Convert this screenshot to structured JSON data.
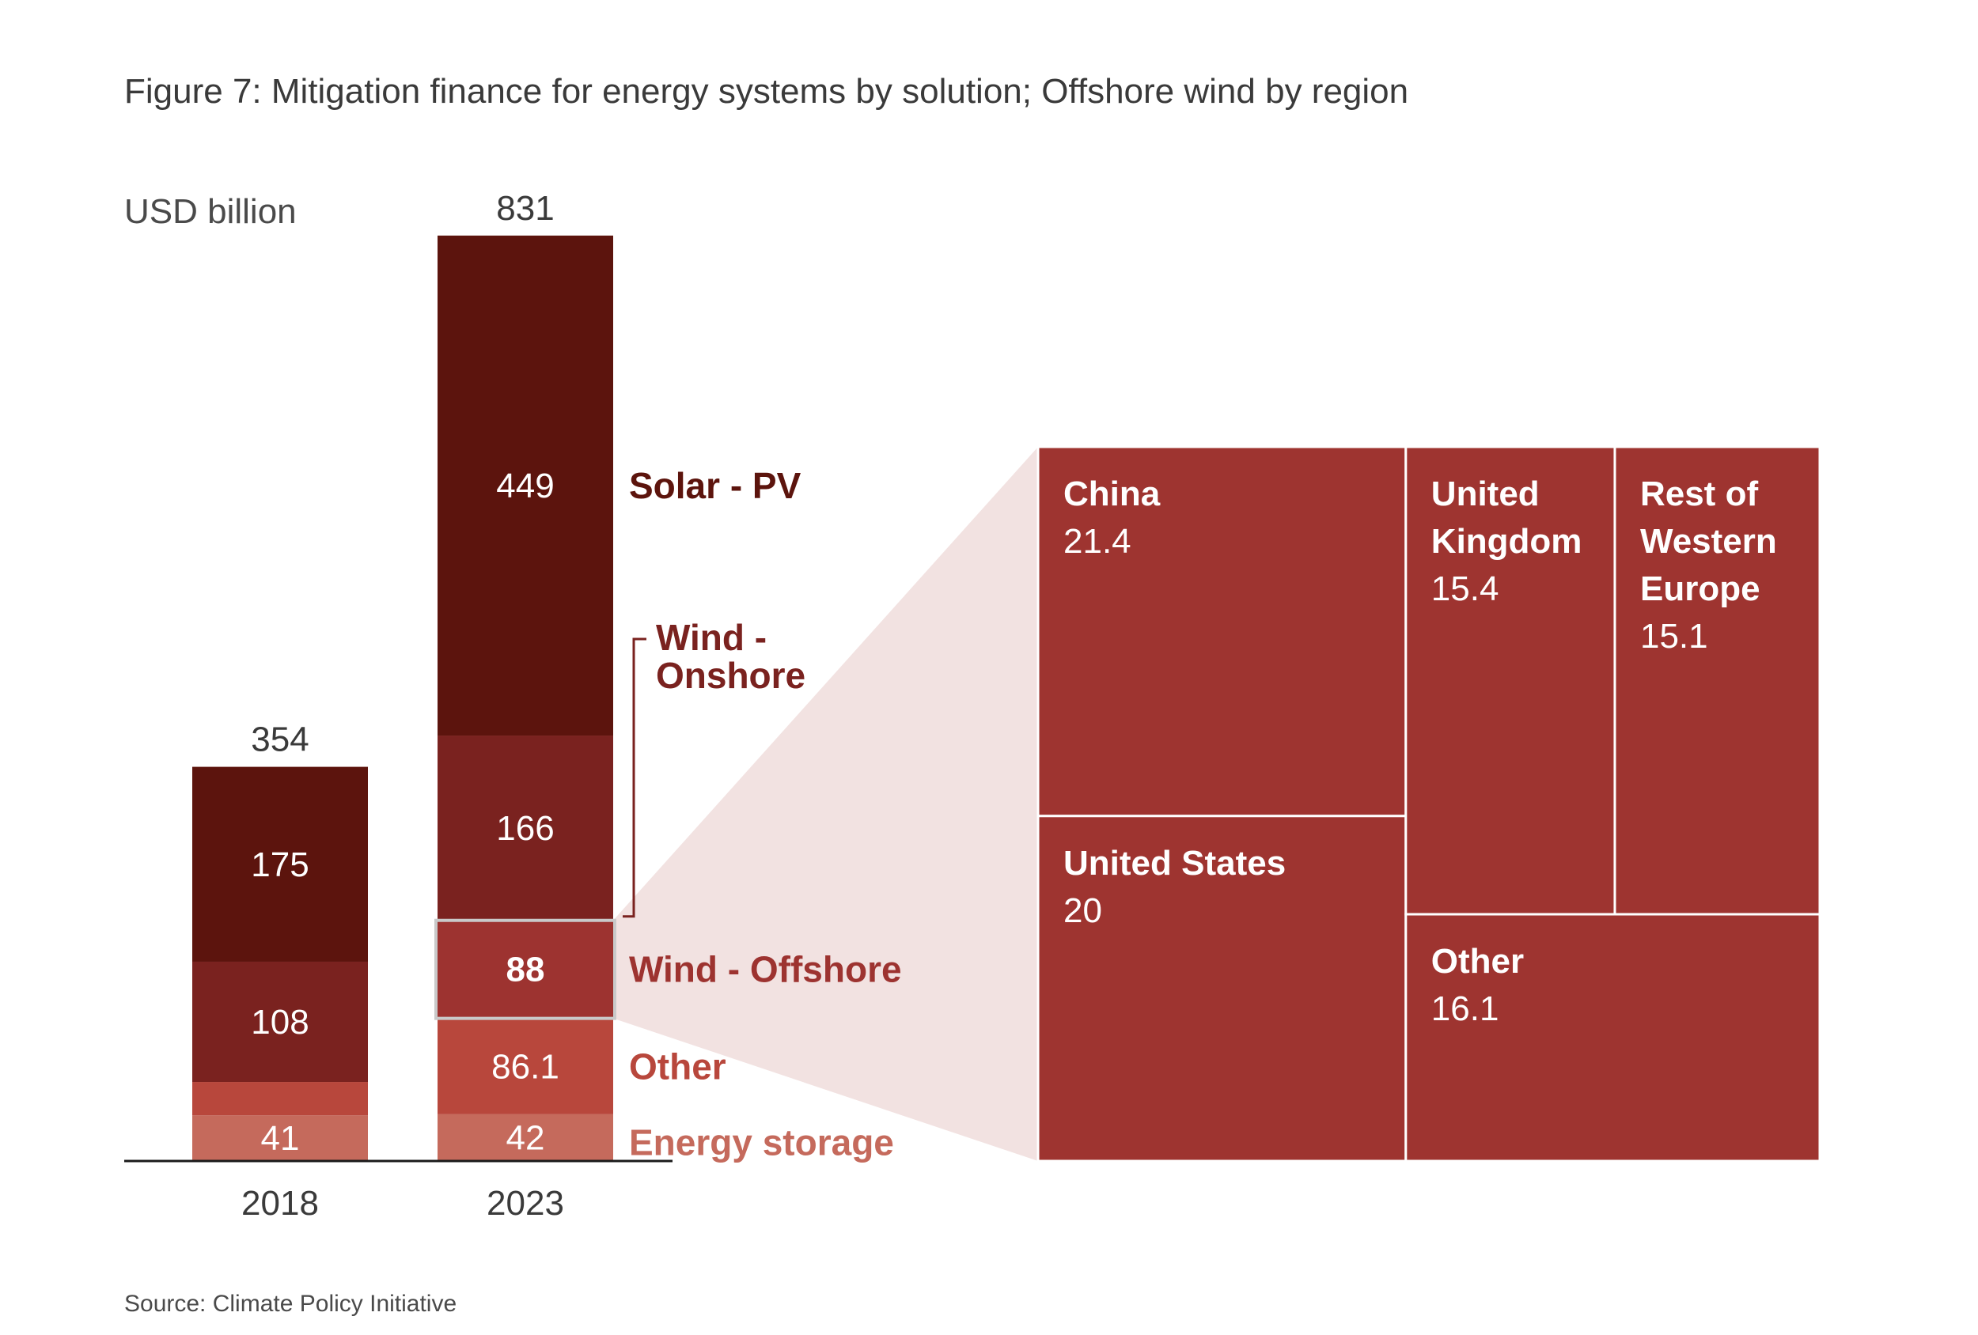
{
  "title": "Figure 7: Mitigation finance for energy systems by solution; Offshore wind by region",
  "source": "Source: Climate Policy Initiative",
  "chart_data": [
    {
      "type": "bar",
      "stacked": true,
      "ylabel": "USD billion",
      "categories": [
        "2018",
        "2023"
      ],
      "totals": [
        "354",
        "831"
      ],
      "series": [
        {
          "name": "Energy storage",
          "values": [
            41,
            42
          ],
          "labels": [
            "41",
            "42"
          ],
          "color": "#c56a5c"
        },
        {
          "name": "Other",
          "values": [
            30,
            86.1
          ],
          "labels": [
            "",
            "86.1"
          ],
          "color": "#b8473c"
        },
        {
          "name": "Wind - Offshore",
          "values": [
            0,
            88
          ],
          "labels": [
            "",
            "88"
          ],
          "color": "#9d3330"
        },
        {
          "name": "Wind - Onshore",
          "values": [
            108,
            166
          ],
          "labels": [
            "108",
            "166"
          ],
          "color": "#7a221f"
        },
        {
          "name": "Solar - PV",
          "values": [
            175,
            449
          ],
          "labels": [
            "175",
            "449"
          ],
          "color": "#5c140d"
        }
      ],
      "legend_labels": [
        {
          "series": "Solar - PV",
          "lines": [
            "Solar - PV"
          ],
          "color": "#5c140d"
        },
        {
          "series": "Wind - Onshore",
          "lines": [
            "Wind -",
            "Onshore"
          ],
          "color": "#7a221f"
        },
        {
          "series": "Wind - Offshore",
          "lines": [
            "Wind - Offshore"
          ],
          "color": "#9d3330"
        },
        {
          "series": "Other",
          "lines": [
            "Other"
          ],
          "color": "#b8473c"
        },
        {
          "series": "Energy storage",
          "lines": [
            "Energy storage"
          ],
          "color": "#c56a5c"
        }
      ],
      "highlighted_series": "Wind - Offshore",
      "ylim": [
        0,
        831
      ],
      "grid": false
    },
    {
      "type": "treemap",
      "parent": "Wind - Offshore",
      "color": "#9e3430",
      "items": [
        {
          "name": "China",
          "value": 21.4,
          "value_label": "21.4",
          "lines": [
            "China"
          ]
        },
        {
          "name": "United States",
          "value": 20,
          "value_label": "20",
          "lines": [
            "United States"
          ]
        },
        {
          "name": "United Kingdom",
          "value": 15.4,
          "value_label": "15.4",
          "lines": [
            "United",
            "Kingdom"
          ]
        },
        {
          "name": "Rest of Western Europe",
          "value": 15.1,
          "value_label": "15.1",
          "lines": [
            "Rest of",
            "Western",
            "Europe"
          ]
        },
        {
          "name": "Other",
          "value": 16.1,
          "value_label": "16.1",
          "lines": [
            "Other"
          ]
        }
      ]
    }
  ]
}
